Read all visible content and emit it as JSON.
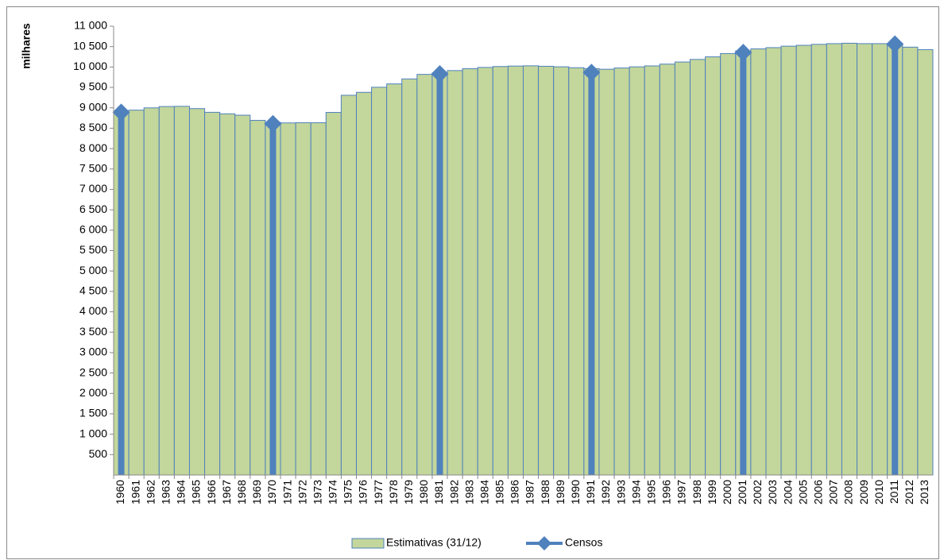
{
  "chart_data": {
    "type": "bar",
    "y_label": "milhares",
    "categories": [
      "1960",
      "1961",
      "1962",
      "1963",
      "1964",
      "1965",
      "1966",
      "1967",
      "1968",
      "1969",
      "1970",
      "1971",
      "1972",
      "1973",
      "1974",
      "1975",
      "1976",
      "1977",
      "1978",
      "1979",
      "1980",
      "1981",
      "1982",
      "1983",
      "1984",
      "1985",
      "1986",
      "1987",
      "1988",
      "1989",
      "1990",
      "1991",
      "1992",
      "1993",
      "1994",
      "1995",
      "1996",
      "1997",
      "1998",
      "1999",
      "2000",
      "2001",
      "2002",
      "2003",
      "2004",
      "2005",
      "2006",
      "2007",
      "2008",
      "2009",
      "2010",
      "2011",
      "2012",
      "2013"
    ],
    "series": [
      {
        "name": "Estimativas (31/12)",
        "color": "#c3d69b",
        "edge": "#4f81bd",
        "values": [
          8865,
          8943,
          8999,
          9031,
          9036,
          8981,
          8890,
          8853,
          8819,
          8692,
          8643,
          8630,
          8634,
          8634,
          8887,
          9307,
          9379,
          9504,
          9586,
          9708,
          9819,
          9851,
          9913,
          9958,
          9990,
          10012,
          10023,
          10029,
          10018,
          10005,
          9983,
          9961,
          9946,
          9976,
          10004,
          10027,
          10071,
          10123,
          10186,
          10249,
          10330,
          10395,
          10444,
          10475,
          10511,
          10532,
          10556,
          10573,
          10583,
          10573,
          10573,
          10542,
          10487,
          10427
        ]
      },
      {
        "name": "Censos",
        "color": "#4f81bd",
        "marker": "diamond",
        "values": [
          8889,
          null,
          null,
          null,
          null,
          null,
          null,
          null,
          null,
          null,
          8611,
          null,
          null,
          null,
          null,
          null,
          null,
          null,
          null,
          null,
          null,
          9833,
          null,
          null,
          null,
          null,
          null,
          null,
          null,
          null,
          null,
          9867,
          null,
          null,
          null,
          null,
          null,
          null,
          null,
          null,
          null,
          10356,
          null,
          null,
          null,
          null,
          null,
          null,
          null,
          null,
          null,
          10562,
          null,
          null
        ]
      }
    ],
    "ylim": [
      0,
      11000
    ],
    "yticks": [
      500,
      {
        "value": 1000,
        "label": "1 000"
      },
      {
        "value": 1500,
        "label": "1 500"
      },
      {
        "value": 2000,
        "label": "2 000"
      },
      {
        "value": 2500,
        "label": "2 500"
      },
      {
        "value": 3000,
        "label": "3 000"
      },
      {
        "value": 3500,
        "label": "3 500"
      },
      {
        "value": 4000,
        "label": "4 000"
      },
      {
        "value": 4500,
        "label": "4 500"
      },
      {
        "value": 5000,
        "label": "5 000"
      },
      {
        "value": 5500,
        "label": "5 500"
      },
      {
        "value": 6000,
        "label": "6 000"
      },
      {
        "value": 6500,
        "label": "6 500"
      },
      {
        "value": 7000,
        "label": "7 000"
      },
      {
        "value": 7500,
        "label": "7 500"
      },
      {
        "value": 8000,
        "label": "8 000"
      },
      {
        "value": 8500,
        "label": "8 500"
      },
      {
        "value": 9000,
        "label": "9 000"
      },
      {
        "value": 9500,
        "label": "9 500"
      },
      {
        "value": 10000,
        "label": "10 000"
      },
      {
        "value": 10500,
        "label": "10 500"
      },
      {
        "value": 11000,
        "label": "11 000"
      }
    ],
    "grid": false,
    "legend": "bottom"
  }
}
